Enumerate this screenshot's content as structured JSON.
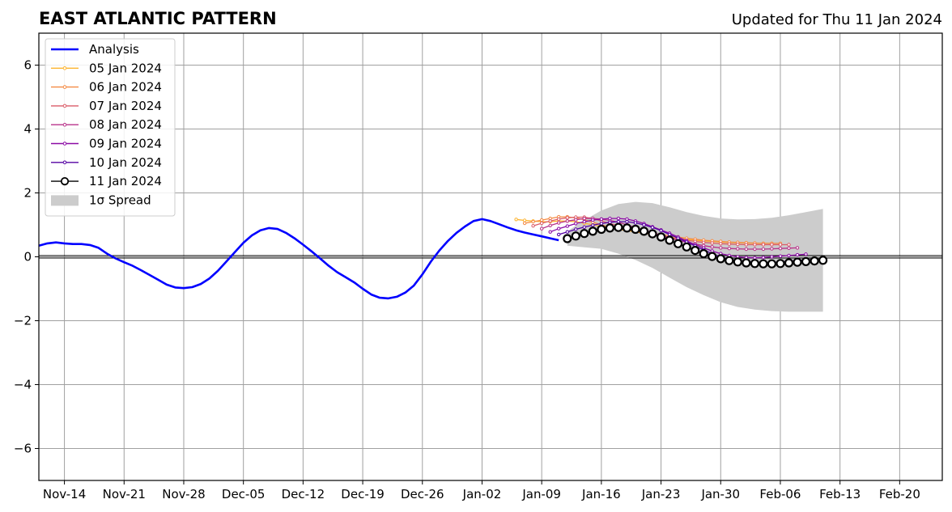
{
  "chart_data": {
    "type": "line",
    "title": "EAST ATLANTIC PATTERN",
    "subtitle": "Updated for Thu 11 Jan 2024",
    "xlabel": "",
    "ylabel": "",
    "ylim": [
      -7,
      7
    ],
    "xlim": [
      "2023-11-11",
      "2024-02-25"
    ],
    "grid": true,
    "legend_placement": "top-left",
    "x_ticks": [
      "Nov-14",
      "Nov-21",
      "Nov-28",
      "Dec-05",
      "Dec-12",
      "Dec-19",
      "Dec-26",
      "Jan-02",
      "Jan-09",
      "Jan-16",
      "Jan-23",
      "Jan-30",
      "Feb-06",
      "Feb-13",
      "Feb-20"
    ],
    "y_ticks": [
      6,
      4,
      2,
      0,
      -2,
      -4,
      -6
    ],
    "analysis": {
      "name": "Analysis",
      "color": "#0000ff",
      "x": [
        "2023-11-11",
        "2023-11-12",
        "2023-11-13",
        "2023-11-14",
        "2023-11-15",
        "2023-11-16",
        "2023-11-17",
        "2023-11-18",
        "2023-11-19",
        "2023-11-20",
        "2023-11-21",
        "2023-11-22",
        "2023-11-23",
        "2023-11-24",
        "2023-11-25",
        "2023-11-26",
        "2023-11-27",
        "2023-11-28",
        "2023-11-29",
        "2023-11-30",
        "2023-12-01",
        "2023-12-02",
        "2023-12-03",
        "2023-12-04",
        "2023-12-05",
        "2023-12-06",
        "2023-12-07",
        "2023-12-08",
        "2023-12-09",
        "2023-12-10",
        "2023-12-11",
        "2023-12-12",
        "2023-12-13",
        "2023-12-14",
        "2023-12-15",
        "2023-12-16",
        "2023-12-17",
        "2023-12-18",
        "2023-12-19",
        "2023-12-20",
        "2023-12-21",
        "2023-12-22",
        "2023-12-23",
        "2023-12-24",
        "2023-12-25",
        "2023-12-26",
        "2023-12-27",
        "2023-12-28",
        "2023-12-29",
        "2023-12-30",
        "2023-12-31",
        "2024-01-01",
        "2024-01-02",
        "2024-01-03",
        "2024-01-04",
        "2024-01-05",
        "2024-01-06",
        "2024-01-07",
        "2024-01-08",
        "2024-01-09",
        "2024-01-10",
        "2024-01-11"
      ],
      "y": [
        0.35,
        0.42,
        0.45,
        0.42,
        0.4,
        0.4,
        0.37,
        0.28,
        0.1,
        -0.05,
        -0.17,
        -0.28,
        -0.42,
        -0.57,
        -0.72,
        -0.87,
        -0.96,
        -0.98,
        -0.95,
        -0.85,
        -0.68,
        -0.44,
        -0.15,
        0.15,
        0.44,
        0.67,
        0.83,
        0.9,
        0.87,
        0.75,
        0.58,
        0.38,
        0.17,
        -0.05,
        -0.28,
        -0.48,
        -0.64,
        -0.8,
        -1.0,
        -1.18,
        -1.28,
        -1.3,
        -1.25,
        -1.12,
        -0.9,
        -0.55,
        -0.15,
        0.2,
        0.5,
        0.75,
        0.95,
        1.12,
        1.18,
        1.12,
        1.02,
        0.92,
        0.83,
        0.76,
        0.7,
        0.64,
        0.58,
        0.52
      ]
    },
    "forecasts": [
      {
        "name": "05 Jan 2024",
        "color": "#fdb42f",
        "x": [
          "2024-01-06",
          "2024-01-07",
          "2024-01-08",
          "2024-01-09",
          "2024-01-10",
          "2024-01-11",
          "2024-01-12",
          "2024-01-13",
          "2024-01-14",
          "2024-01-15",
          "2024-01-16",
          "2024-01-17",
          "2024-01-18",
          "2024-01-19",
          "2024-01-20",
          "2024-01-21",
          "2024-01-22",
          "2024-01-23",
          "2024-01-24",
          "2024-01-25",
          "2024-01-26",
          "2024-01-27",
          "2024-01-28",
          "2024-01-29",
          "2024-01-30",
          "2024-01-31",
          "2024-02-01",
          "2024-02-02",
          "2024-02-03",
          "2024-02-04",
          "2024-02-05"
        ],
        "y": [
          1.17,
          1.14,
          1.12,
          1.1,
          1.1,
          1.12,
          1.12,
          1.1,
          1.05,
          1.0,
          0.95,
          0.9,
          0.86,
          0.82,
          0.78,
          0.74,
          0.7,
          0.66,
          0.62,
          0.58,
          0.55,
          0.52,
          0.5,
          0.48,
          0.46,
          0.45,
          0.44,
          0.43,
          0.42,
          0.42,
          0.42
        ]
      },
      {
        "name": "06 Jan 2024",
        "color": "#f48a43",
        "x": [
          "2024-01-07",
          "2024-01-08",
          "2024-01-09",
          "2024-01-10",
          "2024-01-11",
          "2024-01-12",
          "2024-01-13",
          "2024-01-14",
          "2024-01-15",
          "2024-01-16",
          "2024-01-17",
          "2024-01-18",
          "2024-01-19",
          "2024-01-20",
          "2024-01-21",
          "2024-01-22",
          "2024-01-23",
          "2024-01-24",
          "2024-01-25",
          "2024-01-26",
          "2024-01-27",
          "2024-01-28",
          "2024-01-29",
          "2024-01-30",
          "2024-01-31",
          "2024-02-01",
          "2024-02-02",
          "2024-02-03",
          "2024-02-04",
          "2024-02-05",
          "2024-02-06"
        ],
        "y": [
          1.05,
          1.1,
          1.15,
          1.2,
          1.25,
          1.25,
          1.22,
          1.16,
          1.08,
          1.0,
          0.93,
          0.88,
          0.85,
          0.8,
          0.76,
          0.72,
          0.7,
          0.66,
          0.62,
          0.58,
          0.55,
          0.52,
          0.5,
          0.48,
          0.46,
          0.45,
          0.44,
          0.43,
          0.42,
          0.42,
          0.42
        ]
      },
      {
        "name": "07 Jan 2024",
        "color": "#db5c68",
        "x": [
          "2024-01-08",
          "2024-01-09",
          "2024-01-10",
          "2024-01-11",
          "2024-01-12",
          "2024-01-13",
          "2024-01-14",
          "2024-01-15",
          "2024-01-16",
          "2024-01-17",
          "2024-01-18",
          "2024-01-19",
          "2024-01-20",
          "2024-01-21",
          "2024-01-22",
          "2024-01-23",
          "2024-01-24",
          "2024-01-25",
          "2024-01-26",
          "2024-01-27",
          "2024-01-28",
          "2024-01-29",
          "2024-01-30",
          "2024-01-31",
          "2024-02-01",
          "2024-02-02",
          "2024-02-03",
          "2024-02-04",
          "2024-02-05",
          "2024-02-06",
          "2024-02-07"
        ],
        "y": [
          0.97,
          1.05,
          1.12,
          1.18,
          1.22,
          1.24,
          1.24,
          1.2,
          1.12,
          1.04,
          0.97,
          0.9,
          0.83,
          0.76,
          0.7,
          0.65,
          0.6,
          0.55,
          0.52,
          0.48,
          0.45,
          0.43,
          0.41,
          0.4,
          0.39,
          0.38,
          0.38,
          0.38,
          0.38,
          0.38,
          0.38
        ]
      },
      {
        "name": "08 Jan 2024",
        "color": "#b83289",
        "x": [
          "2024-01-09",
          "2024-01-10",
          "2024-01-11",
          "2024-01-12",
          "2024-01-13",
          "2024-01-14",
          "2024-01-15",
          "2024-01-16",
          "2024-01-17",
          "2024-01-18",
          "2024-01-19",
          "2024-01-20",
          "2024-01-21",
          "2024-01-22",
          "2024-01-23",
          "2024-01-24",
          "2024-01-25",
          "2024-01-26",
          "2024-01-27",
          "2024-01-28",
          "2024-01-29",
          "2024-01-30",
          "2024-01-31",
          "2024-02-01",
          "2024-02-02",
          "2024-02-03",
          "2024-02-04",
          "2024-02-05",
          "2024-02-06",
          "2024-02-07",
          "2024-02-08"
        ],
        "y": [
          0.88,
          0.98,
          1.06,
          1.12,
          1.16,
          1.2,
          1.2,
          1.18,
          1.14,
          1.08,
          1.0,
          0.92,
          0.84,
          0.76,
          0.68,
          0.6,
          0.52,
          0.45,
          0.4,
          0.35,
          0.31,
          0.28,
          0.26,
          0.25,
          0.24,
          0.24,
          0.24,
          0.25,
          0.26,
          0.27,
          0.28
        ]
      },
      {
        "name": "09 Jan 2024",
        "color": "#8b0aa5",
        "x": [
          "2024-01-10",
          "2024-01-11",
          "2024-01-12",
          "2024-01-13",
          "2024-01-14",
          "2024-01-15",
          "2024-01-16",
          "2024-01-17",
          "2024-01-18",
          "2024-01-19",
          "2024-01-20",
          "2024-01-21",
          "2024-01-22",
          "2024-01-23",
          "2024-01-24",
          "2024-01-25",
          "2024-01-26",
          "2024-01-27",
          "2024-01-28",
          "2024-01-29",
          "2024-01-30",
          "2024-01-31",
          "2024-02-01",
          "2024-02-02",
          "2024-02-03",
          "2024-02-04",
          "2024-02-05",
          "2024-02-06",
          "2024-02-07",
          "2024-02-08",
          "2024-02-09"
        ],
        "y": [
          0.78,
          0.88,
          0.96,
          1.04,
          1.1,
          1.15,
          1.18,
          1.2,
          1.2,
          1.18,
          1.12,
          1.04,
          0.94,
          0.84,
          0.74,
          0.62,
          0.5,
          0.38,
          0.28,
          0.18,
          0.1,
          0.04,
          0.0,
          -0.02,
          -0.03,
          -0.02,
          0.0,
          0.02,
          0.04,
          0.06,
          0.08
        ]
      },
      {
        "name": "10 Jan 2024",
        "color": "#5402a3",
        "x": [
          "2024-01-11",
          "2024-01-12",
          "2024-01-13",
          "2024-01-14",
          "2024-01-15",
          "2024-01-16",
          "2024-01-17",
          "2024-01-18",
          "2024-01-19",
          "2024-01-20",
          "2024-01-21",
          "2024-01-22",
          "2024-01-23",
          "2024-01-24",
          "2024-01-25",
          "2024-01-26",
          "2024-01-27",
          "2024-01-28",
          "2024-01-29",
          "2024-01-30",
          "2024-01-31",
          "2024-02-01",
          "2024-02-02",
          "2024-02-03",
          "2024-02-04",
          "2024-02-05",
          "2024-02-06",
          "2024-02-07",
          "2024-02-08",
          "2024-02-09",
          "2024-02-10"
        ],
        "y": [
          0.7,
          0.78,
          0.86,
          0.93,
          0.99,
          1.04,
          1.08,
          1.1,
          1.1,
          1.06,
          1.0,
          0.92,
          0.82,
          0.7,
          0.58,
          0.46,
          0.34,
          0.22,
          0.1,
          0.0,
          -0.08,
          -0.12,
          -0.15,
          -0.17,
          -0.18,
          -0.18,
          -0.16,
          -0.14,
          -0.12,
          -0.1,
          -0.08
        ]
      },
      {
        "name": "11 Jan 2024",
        "color": "#000000",
        "x": [
          "2024-01-12",
          "2024-01-13",
          "2024-01-14",
          "2024-01-15",
          "2024-01-16",
          "2024-01-17",
          "2024-01-18",
          "2024-01-19",
          "2024-01-20",
          "2024-01-21",
          "2024-01-22",
          "2024-01-23",
          "2024-01-24",
          "2024-01-25",
          "2024-01-26",
          "2024-01-27",
          "2024-01-28",
          "2024-01-29",
          "2024-01-30",
          "2024-01-31",
          "2024-02-01",
          "2024-02-02",
          "2024-02-03",
          "2024-02-04",
          "2024-02-05",
          "2024-02-06",
          "2024-02-07",
          "2024-02-08",
          "2024-02-09",
          "2024-02-10",
          "2024-02-11"
        ],
        "y": [
          0.57,
          0.65,
          0.73,
          0.8,
          0.86,
          0.9,
          0.92,
          0.9,
          0.86,
          0.8,
          0.72,
          0.62,
          0.52,
          0.41,
          0.31,
          0.2,
          0.1,
          0.01,
          -0.06,
          -0.12,
          -0.16,
          -0.19,
          -0.21,
          -0.22,
          -0.22,
          -0.21,
          -0.19,
          -0.17,
          -0.15,
          -0.13,
          -0.11
        ]
      }
    ],
    "spread": {
      "name": "1σ Spread",
      "color": "#cccccc",
      "x": [
        "2024-01-12",
        "2024-01-14",
        "2024-01-16",
        "2024-01-18",
        "2024-01-20",
        "2024-01-22",
        "2024-01-24",
        "2024-01-26",
        "2024-01-28",
        "2024-01-30",
        "2024-02-01",
        "2024-02-03",
        "2024-02-05",
        "2024-02-07",
        "2024-02-09",
        "2024-02-11"
      ],
      "upper": [
        0.8,
        1.15,
        1.45,
        1.65,
        1.72,
        1.68,
        1.55,
        1.4,
        1.28,
        1.2,
        1.17,
        1.18,
        1.22,
        1.3,
        1.4,
        1.5
      ],
      "lower": [
        0.35,
        0.3,
        0.25,
        0.1,
        -0.1,
        -0.35,
        -0.65,
        -0.95,
        -1.2,
        -1.42,
        -1.57,
        -1.65,
        -1.7,
        -1.72,
        -1.72,
        -1.72
      ]
    }
  }
}
